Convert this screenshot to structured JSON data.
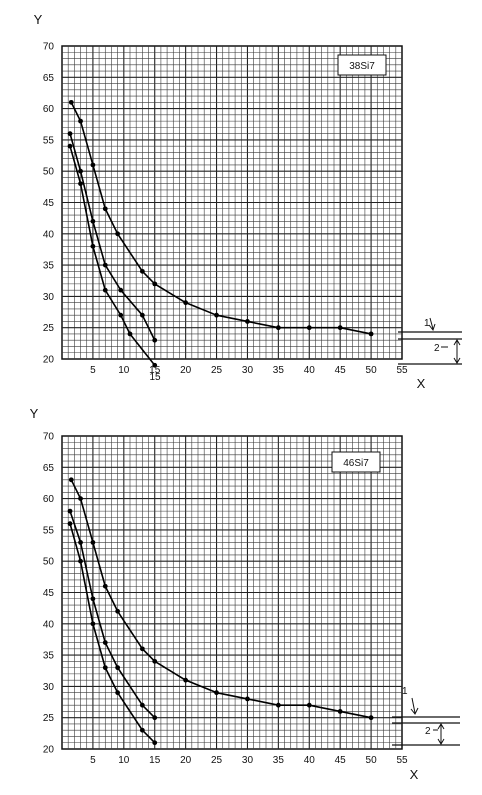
{
  "chart_data": [
    {
      "type": "line",
      "title": "38Si7",
      "xlabel": "X",
      "ylabel": "Y",
      "xlim": [
        0,
        55
      ],
      "ylim": [
        20,
        70
      ],
      "x_ticks": [
        "5",
        "10",
        "15",
        "20",
        "25",
        "30",
        "35",
        "40",
        "45",
        "50",
        "55"
      ],
      "y_ticks": [
        "20",
        "25",
        "30",
        "35",
        "40",
        "45",
        "50",
        "55",
        "60",
        "65",
        "70"
      ],
      "grid": true,
      "series": [
        {
          "points": [
            [
              1.5,
              61
            ],
            [
              3,
              58
            ],
            [
              5,
              51
            ],
            [
              7,
              44
            ],
            [
              9,
              40
            ],
            [
              13,
              34
            ],
            [
              15,
              32
            ],
            [
              20,
              29
            ],
            [
              25,
              27
            ],
            [
              30,
              26
            ],
            [
              35,
              25
            ],
            [
              40,
              25
            ],
            [
              45,
              25
            ],
            [
              50,
              24
            ]
          ]
        },
        {
          "points": [
            [
              1.3,
              56
            ],
            [
              3,
              50
            ],
            [
              5,
              42
            ],
            [
              7,
              35
            ],
            [
              9.5,
              31
            ],
            [
              13,
              27
            ],
            [
              15,
              23
            ]
          ]
        },
        {
          "points": [
            [
              1.3,
              54
            ],
            [
              3,
              48
            ],
            [
              5,
              38
            ],
            [
              7,
              31
            ],
            [
              9.5,
              27
            ],
            [
              11,
              24
            ],
            [
              15,
              19
            ]
          ]
        }
      ],
      "annotations": [
        {
          "text": "15",
          "at": [
            15,
            19
          ]
        },
        {
          "text": "1",
          "kind": "tolerance-band-marker"
        },
        {
          "text": "2",
          "kind": "tolerance-band-marker"
        }
      ]
    },
    {
      "type": "line",
      "title": "46Si7",
      "xlabel": "X",
      "ylabel": "Y",
      "xlim": [
        0,
        55
      ],
      "ylim": [
        20,
        70
      ],
      "x_ticks": [
        "5",
        "10",
        "15",
        "20",
        "25",
        "30",
        "35",
        "40",
        "45",
        "50",
        "55"
      ],
      "y_ticks": [
        "20",
        "25",
        "30",
        "35",
        "40",
        "45",
        "50",
        "55",
        "60",
        "65",
        "70"
      ],
      "grid": true,
      "series": [
        {
          "points": [
            [
              1.5,
              63
            ],
            [
              3,
              60
            ],
            [
              5,
              53
            ],
            [
              7,
              46
            ],
            [
              9,
              42
            ],
            [
              13,
              36
            ],
            [
              15,
              34
            ],
            [
              20,
              31
            ],
            [
              25,
              29
            ],
            [
              30,
              28
            ],
            [
              35,
              27
            ],
            [
              40,
              27
            ],
            [
              45,
              26
            ],
            [
              50,
              25
            ]
          ]
        },
        {
          "points": [
            [
              1.3,
              58
            ],
            [
              3,
              53
            ],
            [
              5,
              44
            ],
            [
              7,
              37
            ],
            [
              9,
              33
            ],
            [
              13,
              27
            ],
            [
              15,
              25
            ]
          ]
        },
        {
          "points": [
            [
              1.3,
              56
            ],
            [
              3,
              50
            ],
            [
              5,
              40
            ],
            [
              7,
              33
            ],
            [
              9,
              29
            ],
            [
              13,
              23
            ],
            [
              15,
              21
            ]
          ]
        }
      ],
      "annotations": [
        {
          "text": "1",
          "kind": "tolerance-band-marker"
        },
        {
          "text": "2",
          "kind": "tolerance-band-marker"
        }
      ]
    }
  ]
}
